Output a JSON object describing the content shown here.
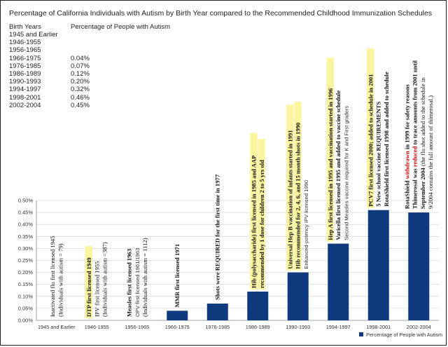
{
  "title": "Percentage of California Individuals with Autism by Birth Year compared to the Recommended Childhood Immunization Schedules",
  "table": {
    "headers": [
      "Birth Years",
      "Percentage of People with Autism"
    ],
    "rows": [
      [
        "1945  and Earlier",
        ""
      ],
      [
        "1946-1955",
        ""
      ],
      [
        "1956-1965",
        ""
      ],
      [
        "1966-1975",
        "0.04%"
      ],
      [
        "1976-1985",
        "0.07%"
      ],
      [
        "1986-1989",
        "0.12%"
      ],
      [
        "1990-1993",
        "0.20%"
      ],
      [
        "1994-1997",
        "0.32%"
      ],
      [
        "1998-2001",
        "0.46%"
      ],
      [
        "2002-2004",
        "0.45%"
      ]
    ]
  },
  "colors": {
    "bar": "#0f3a7d",
    "highlight": "#fbf5a0",
    "axis": "#888888",
    "grid": "#d8d8d8",
    "emphasis_red": "#cc0000"
  },
  "chart_data": {
    "type": "bar",
    "categories": [
      "1945  and Earlier",
      "1946-1955",
      "1956-1965",
      "1966-1975",
      "1976-1985",
      "1986-1989",
      "1990-1993",
      "1994-1997",
      "1998-2001",
      "2002-2004"
    ],
    "series": [
      {
        "name": "Percentage of People with Autism",
        "values": [
          null,
          null,
          null,
          0.04,
          0.07,
          0.12,
          0.2,
          0.32,
          0.46,
          0.45
        ]
      }
    ],
    "y_ticks": [
      "0.00%",
      "0.05%",
      "0.10%",
      "0.15%",
      "0.20%",
      "0.25%",
      "0.30%",
      "0.35%",
      "0.40%",
      "0.45%",
      "0.50%"
    ],
    "ylim": [
      0,
      0.5
    ],
    "grid": true,
    "legend": {
      "position": "bottom-right",
      "label": "Percentage of People with Autism"
    }
  },
  "annotations": [
    {
      "group": 0,
      "lines": [
        {
          "text": "Inactivated flu first licensed 1945"
        },
        {
          "text": "(Individuals with autism = 79)"
        }
      ]
    },
    {
      "group": 1,
      "lines": [
        {
          "text": "DTP first licensed 1949",
          "bold": true,
          "highlight": true
        },
        {
          "text": "IPV first licensed 1955"
        },
        {
          "text": "(Individuals with autism =387)"
        }
      ]
    },
    {
      "group": 2,
      "lines": [
        {
          "text": "Measles first licensed 1963",
          "bold": true
        },
        {
          "text": "OPV first licensed 1961/1963",
          "small": true
        },
        {
          "text": "(Individuals with autism = 1112)"
        }
      ]
    },
    {
      "group": 3,
      "lines": [
        {
          "text": "MMR first licensed 1971",
          "bold": true
        }
      ]
    },
    {
      "group": 4,
      "lines": [
        {
          "text": "Shots were REQUIRED for the first time in 1977",
          "bold": true
        }
      ]
    },
    {
      "group": 5,
      "lines": [
        {
          "text": "Hib (polysaccharide) first licensed in 1985 and AAP",
          "bold": true,
          "highlight": true
        },
        {
          "text": "recommended by 1 dose for children 2 to 5 yrs old",
          "bold": true,
          "highlight": true
        }
      ]
    },
    {
      "group": 6,
      "lines": [
        {
          "text": "Universal Hep B vaccination of infants started in 1991",
          "bold": true,
          "highlight": true
        },
        {
          "text": "Hib recommended for 2, 4, 6, and 15 month shots in 1990",
          "bold": true,
          "highlight": true
        },
        {
          "text": "Enhanced-potency IPV licensed 1990",
          "small": true
        }
      ]
    },
    {
      "group": 7,
      "lines": [
        {
          "text": "Hep A first licensed in 1995 and vaccination started in 1996",
          "bold": true,
          "highlight": true
        },
        {
          "text": "Varicella first licensed 1995 and added to vaccine schedule",
          "bold": true
        },
        {
          "text": "Second Measles vaccine required for K and First graders",
          "small": true
        }
      ]
    },
    {
      "group": 8,
      "lines": [
        {
          "text": "PCV7 first licensed 2000; added to  schedule in 2001",
          "bold": true,
          "highlight": true
        },
        {
          "text": "5 New school vaccine REQUIREMENTS",
          "bold": true
        },
        {
          "text": "RotaShield first licensed 1998 and added to schedule",
          "bold": true
        }
      ]
    },
    {
      "group": 9,
      "lines": [
        {
          "segments": [
            {
              "text": "RotaShield ",
              "bold": true
            },
            {
              "text": "withdrawn",
              "bold": true,
              "red": true
            },
            {
              "text": " in 1999 for safety reasons",
              "bold": true
            }
          ]
        },
        {
          "segments": [
            {
              "text": "Thimerosal was ",
              "bold": true
            },
            {
              "text": "reduced",
              "bold": true,
              "red": true
            },
            {
              "text": " to trace amounts from 2001 until",
              "bold": true
            }
          ]
        },
        {
          "segments": [
            {
              "text": "September 2004",
              "bold": true
            },
            {
              "text": "  (the flu shot added to the schedule in"
            }
          ]
        },
        {
          "text": "9/2004 contains the full amount of thimerosal.)"
        }
      ]
    }
  ]
}
